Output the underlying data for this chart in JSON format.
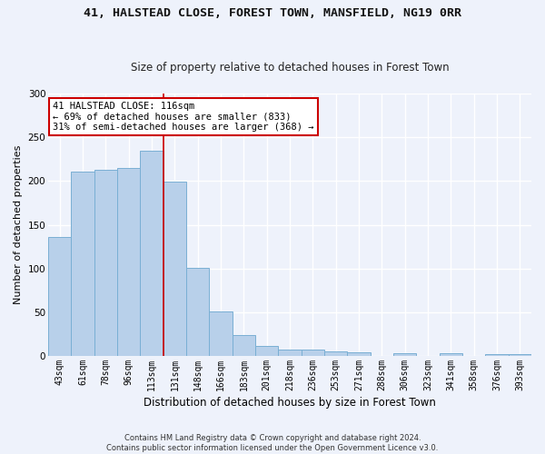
{
  "title_line1": "41, HALSTEAD CLOSE, FOREST TOWN, MANSFIELD, NG19 0RR",
  "title_line2": "Size of property relative to detached houses in Forest Town",
  "xlabel": "Distribution of detached houses by size in Forest Town",
  "ylabel": "Number of detached properties",
  "categories": [
    "43sqm",
    "61sqm",
    "78sqm",
    "96sqm",
    "113sqm",
    "131sqm",
    "148sqm",
    "166sqm",
    "183sqm",
    "201sqm",
    "218sqm",
    "236sqm",
    "253sqm",
    "271sqm",
    "288sqm",
    "306sqm",
    "323sqm",
    "341sqm",
    "358sqm",
    "376sqm",
    "393sqm"
  ],
  "values": [
    136,
    211,
    213,
    215,
    235,
    199,
    101,
    51,
    24,
    11,
    7,
    7,
    5,
    4,
    0,
    3,
    0,
    3,
    0,
    2,
    2
  ],
  "bar_color": "#b8d0ea",
  "bar_edge_color": "#7aafd4",
  "vline_index": 4,
  "annotation_text": "41 HALSTEAD CLOSE: 116sqm\n← 69% of detached houses are smaller (833)\n31% of semi-detached houses are larger (368) →",
  "annotation_box_color": "#ffffff",
  "annotation_box_edge_color": "#cc0000",
  "vline_color": "#cc0000",
  "footer_text": "Contains HM Land Registry data © Crown copyright and database right 2024.\nContains public sector information licensed under the Open Government Licence v3.0.",
  "ylim": [
    0,
    300
  ],
  "background_color": "#eef2fb",
  "grid_color": "#ffffff",
  "title_fontsize": 9.5,
  "subtitle_fontsize": 8.5,
  "tick_fontsize": 7,
  "ylabel_fontsize": 8,
  "xlabel_fontsize": 8.5,
  "footer_fontsize": 6,
  "annotation_fontsize": 7.5
}
